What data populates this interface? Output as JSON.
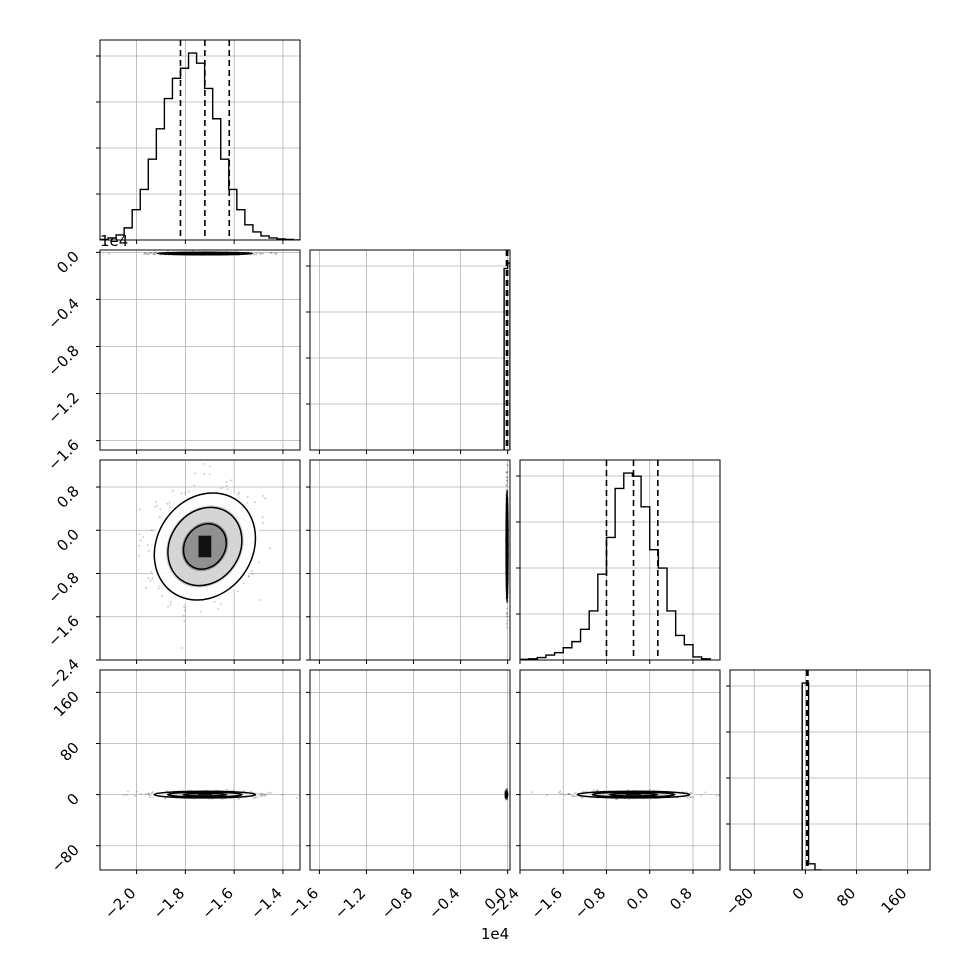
{
  "chart_data": {
    "type": "corner",
    "offset_labels": {
      "y_row1": "1e4",
      "x_bottom": "1e4"
    },
    "axes": {
      "p0": {
        "range": [
          -2.15,
          -1.33
        ],
        "ticks": [
          -2.0,
          -1.8,
          -1.6,
          -1.4
        ],
        "tick_labels": [
          "−2.0",
          "−1.8",
          "−1.6",
          "−1.4"
        ],
        "scale_note": "×1e4"
      },
      "p1": {
        "range": [
          -1.68,
          0.02
        ],
        "ticks": [
          -1.6,
          -1.2,
          -0.8,
          -0.4,
          0.0
        ],
        "tick_labels": [
          "−1.6",
          "−1.2",
          "−0.8",
          "−0.4",
          "0.0"
        ],
        "scale_note": "×1e4"
      },
      "p2": {
        "range": [
          -2.4,
          1.3
        ],
        "ticks": [
          -2.4,
          -1.6,
          -0.8,
          0.0,
          0.8
        ],
        "tick_labels": [
          "−2.4",
          "−1.6",
          "−0.8",
          "0.0",
          "0.8"
        ]
      },
      "p3": {
        "range": [
          -118,
          195
        ],
        "ticks": [
          -80,
          0,
          80,
          160
        ],
        "tick_labels": [
          "−80",
          "0",
          "80",
          "160"
        ]
      }
    },
    "histograms": [
      {
        "param": "p0",
        "bin_edges": [
          -2.15,
          -2.117,
          -2.084,
          -2.051,
          -2.018,
          -1.985,
          -1.952,
          -1.919,
          -1.886,
          -1.853,
          -1.82,
          -1.787,
          -1.754,
          -1.721,
          -1.688,
          -1.655,
          -1.622,
          -1.589,
          -1.556,
          -1.523,
          -1.49,
          -1.457,
          -1.424,
          -1.391,
          -1.358,
          -1.33
        ],
        "counts": [
          0.5,
          2,
          5,
          12,
          30,
          50,
          80,
          110,
          140,
          160,
          170,
          185,
          175,
          150,
          120,
          80,
          50,
          30,
          15,
          8,
          4,
          2,
          1,
          0.5,
          0
        ],
        "quantiles": [
          -1.82,
          -1.72,
          -1.62
        ]
      },
      {
        "param": "p1",
        "bin_edges": [
          -0.03,
          0.0,
          0.02
        ],
        "counts": [
          170,
          175
        ],
        "quantiles": [
          -0.01,
          -0.005,
          0.0
        ]
      },
      {
        "param": "p2",
        "bin_edges": [
          -2.4,
          -2.24,
          -2.08,
          -1.92,
          -1.76,
          -1.6,
          -1.44,
          -1.28,
          -1.12,
          -0.96,
          -0.8,
          -0.64,
          -0.48,
          -0.32,
          -0.16,
          0.0,
          0.16,
          0.32,
          0.48,
          0.64,
          0.8,
          0.96,
          1.12
        ],
        "counts": [
          1,
          2,
          4,
          8,
          12,
          20,
          30,
          50,
          80,
          140,
          200,
          280,
          305,
          300,
          250,
          180,
          150,
          80,
          40,
          25,
          5,
          2
        ],
        "quantiles": [
          -0.8,
          -0.3,
          0.15
        ]
      },
      {
        "param": "p3",
        "bin_edges": [
          -5,
          5,
          15,
          25
        ],
        "counts": [
          182,
          6,
          0
        ],
        "quantiles": [
          2,
          3,
          4
        ]
      }
    ],
    "pairs": [
      {
        "x": "p0",
        "y": "p1",
        "center": [
          -1.72,
          -0.01
        ],
        "spread": [
          0.075,
          0.004
        ],
        "rotation": 0
      },
      {
        "x": "p0",
        "y": "p2",
        "center": [
          -1.72,
          -0.3
        ],
        "spread": [
          0.075,
          0.4
        ],
        "rotation": 35
      },
      {
        "x": "p1",
        "y": "p2",
        "center": [
          -0.005,
          -0.3
        ],
        "spread": [
          0.003,
          0.4
        ],
        "rotation": 0
      },
      {
        "x": "p0",
        "y": "p3",
        "center": [
          -1.72,
          0
        ],
        "spread": [
          0.08,
          2.0
        ],
        "rotation": 0
      },
      {
        "x": "p1",
        "y": "p3",
        "center": [
          -0.01,
          0
        ],
        "spread": [
          0.003,
          2.0
        ],
        "rotation": 0
      },
      {
        "x": "p2",
        "y": "p3",
        "center": [
          -0.3,
          0
        ],
        "spread": [
          0.4,
          2.0
        ],
        "rotation": 0
      }
    ],
    "grid": true,
    "levels": [
      0.39,
      0.86,
      0.99
    ]
  }
}
